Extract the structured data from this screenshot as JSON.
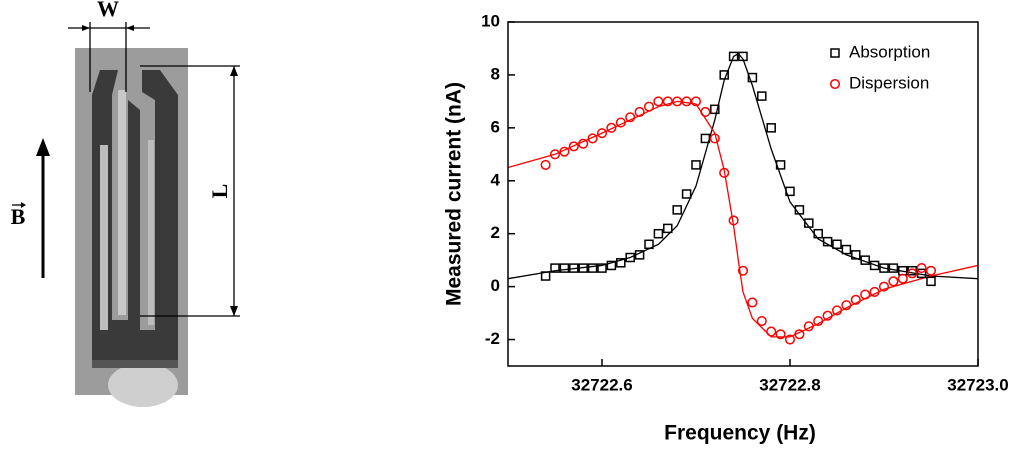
{
  "figure_labels": {
    "w": "W",
    "l": "L",
    "b": "B"
  },
  "chart_data": {
    "type": "scatter",
    "xlabel": "Frequency (Hz)",
    "ylabel": "Measured current (nA)",
    "xlim": [
      32722.5,
      32723.0
    ],
    "xticks": [
      32722.6,
      32722.8,
      {
        "value": 32723.0,
        "label": "32723.0"
      }
    ],
    "ylim": [
      -3,
      10
    ],
    "yticks": [
      -2,
      0,
      2,
      4,
      6,
      8,
      10
    ],
    "legend": "upper right",
    "x": [
      32722.54,
      32722.55,
      32722.56,
      32722.57,
      32722.58,
      32722.59,
      32722.6,
      32722.61,
      32722.62,
      32722.63,
      32722.64,
      32722.65,
      32722.66,
      32722.67,
      32722.68,
      32722.69,
      32722.7,
      32722.71,
      32722.72,
      32722.73,
      32722.74,
      32722.75,
      32722.76,
      32722.77,
      32722.78,
      32722.79,
      32722.8,
      32722.81,
      32722.82,
      32722.83,
      32722.84,
      32722.85,
      32722.86,
      32722.87,
      32722.88,
      32722.89,
      32722.9,
      32722.91,
      32722.92,
      32722.93,
      32722.94,
      32722.95
    ],
    "series": [
      {
        "name": "Absorption",
        "color": "#000000",
        "marker": "square",
        "values": [
          0.4,
          0.7,
          0.7,
          0.7,
          0.7,
          0.7,
          0.7,
          0.8,
          0.9,
          1.1,
          1.2,
          1.6,
          2.0,
          2.2,
          2.9,
          3.5,
          4.6,
          5.6,
          6.7,
          8.0,
          8.7,
          8.7,
          7.9,
          7.2,
          6.0,
          4.6,
          3.6,
          2.9,
          2.4,
          2.0,
          1.7,
          1.6,
          1.4,
          1.2,
          1.0,
          0.8,
          0.7,
          0.7,
          0.6,
          0.6,
          0.5,
          0.2
        ]
      },
      {
        "name": "Dispersion",
        "color": "#ff0000",
        "marker": "circle",
        "values": [
          4.6,
          5.0,
          5.1,
          5.3,
          5.4,
          5.6,
          5.8,
          6.0,
          6.2,
          6.4,
          6.6,
          6.8,
          7.0,
          7.0,
          7.0,
          7.0,
          7.0,
          6.6,
          5.6,
          4.3,
          2.5,
          0.6,
          -0.6,
          -1.3,
          -1.7,
          -1.8,
          -2.0,
          -1.8,
          -1.5,
          -1.3,
          -1.1,
          -0.9,
          -0.7,
          -0.5,
          -0.3,
          -0.2,
          0.0,
          0.2,
          0.3,
          0.5,
          0.7,
          0.6
        ]
      }
    ],
    "fits": [
      {
        "color": "#000000",
        "x": [
          32722.5,
          32722.55,
          32722.6,
          32722.63,
          32722.66,
          32722.68,
          32722.7,
          32722.72,
          32722.73,
          32722.74,
          32722.745,
          32722.75,
          32722.76,
          32722.78,
          32722.8,
          32722.83,
          32722.86,
          32722.9,
          32722.95,
          32723.0
        ],
        "values": [
          0.3,
          0.6,
          0.8,
          1.1,
          1.6,
          2.3,
          3.8,
          6.3,
          7.8,
          8.7,
          8.8,
          8.6,
          7.6,
          5.2,
          3.2,
          1.8,
          1.2,
          0.7,
          0.4,
          0.3
        ]
      },
      {
        "color": "#ff0000",
        "x": [
          32722.5,
          32722.55,
          32722.6,
          32722.63,
          32722.66,
          32722.68,
          32722.7,
          32722.72,
          32722.73,
          32722.74,
          32722.745,
          32722.75,
          32722.76,
          32722.78,
          32722.8,
          32722.83,
          32722.86,
          32722.9,
          32722.95,
          32723.0
        ],
        "values": [
          4.5,
          5.0,
          5.8,
          6.3,
          6.8,
          7.0,
          6.9,
          5.8,
          4.4,
          2.3,
          1.0,
          -0.2,
          -1.2,
          -1.9,
          -1.9,
          -1.4,
          -0.8,
          -0.1,
          0.4,
          0.8
        ]
      }
    ]
  }
}
